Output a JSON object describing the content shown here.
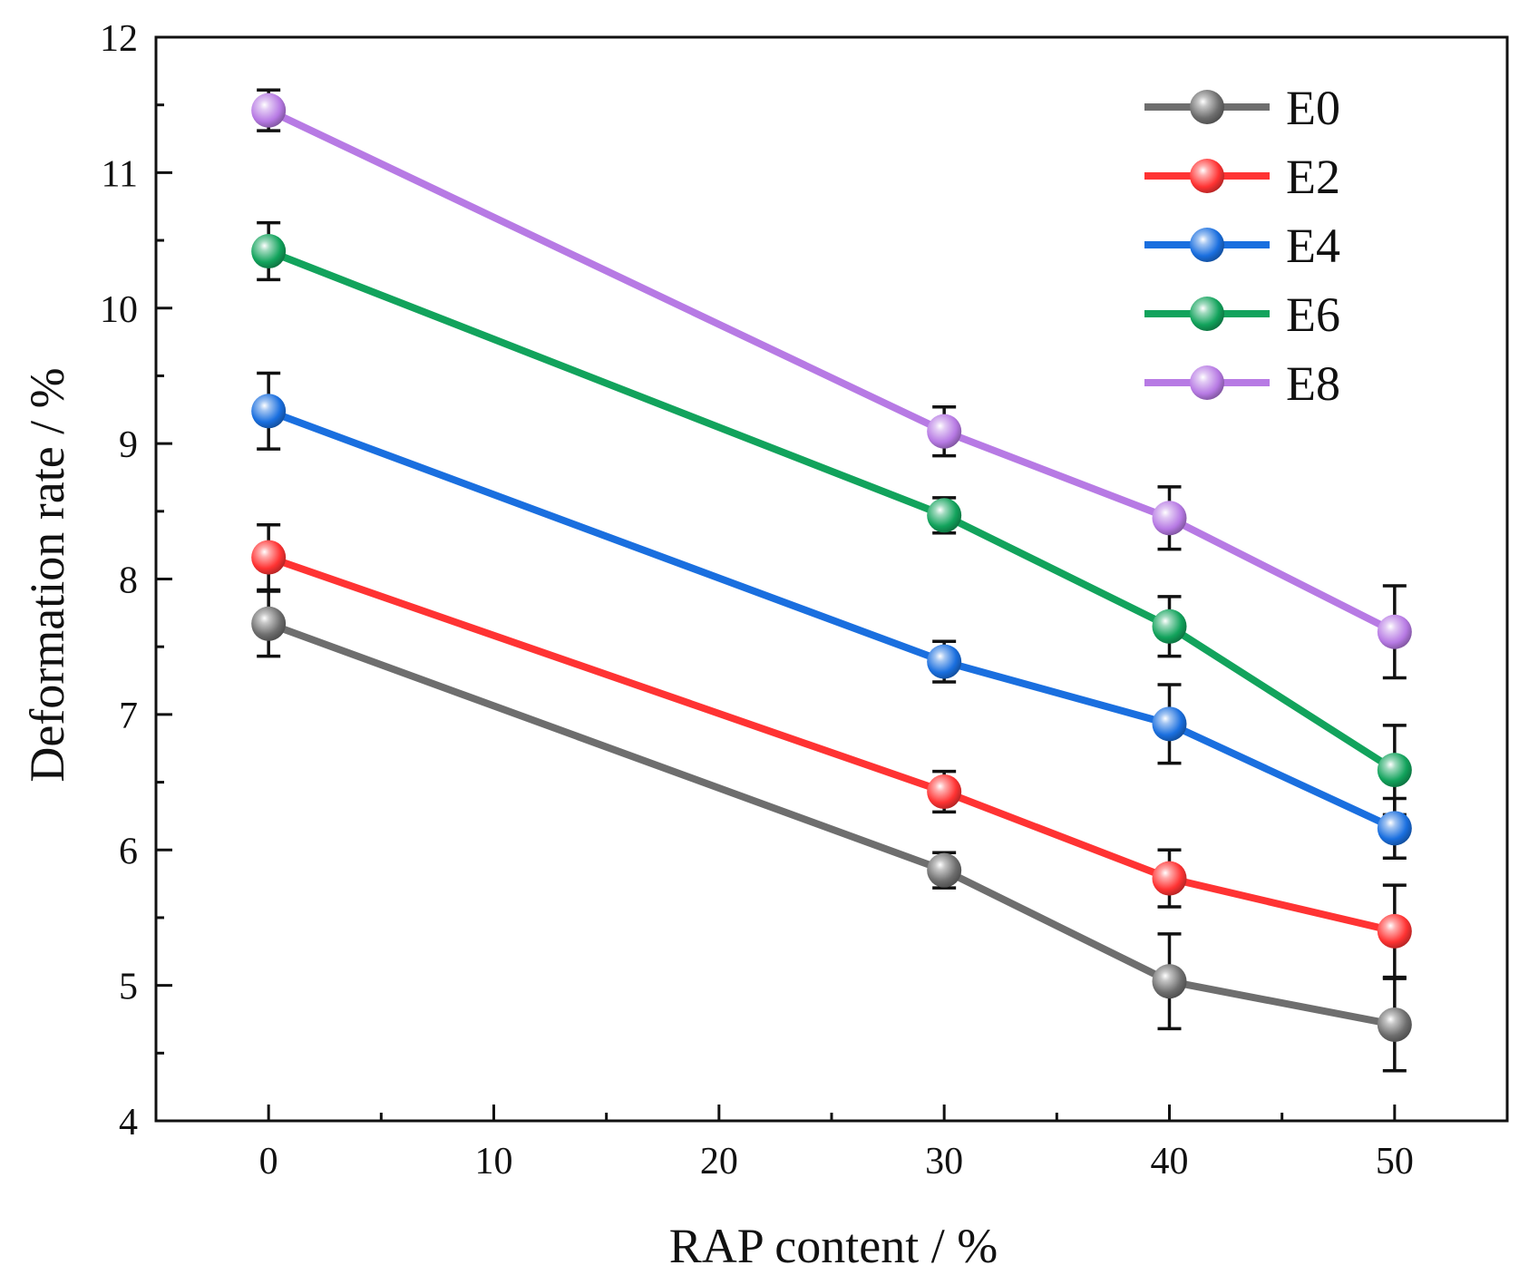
{
  "chart_data": {
    "type": "line",
    "title": "",
    "xlabel": "RAP content / %",
    "ylabel": "Deformation rate / %",
    "xlim": [
      -5,
      55
    ],
    "ylim": [
      4,
      12
    ],
    "x_ticks": [
      0,
      10,
      20,
      30,
      40,
      50
    ],
    "x_tick_labels": [
      "0",
      "10",
      "20",
      "30",
      "40",
      "50"
    ],
    "y_ticks": [
      4,
      5,
      6,
      7,
      8,
      9,
      10,
      11,
      12
    ],
    "y_tick_labels": [
      "4",
      "5",
      "6",
      "7",
      "8",
      "9",
      "10",
      "11",
      "12"
    ],
    "legend_position": "top-right",
    "x": [
      0,
      30,
      40,
      50
    ],
    "series": [
      {
        "name": "E0",
        "color": "#6e6e6e",
        "values": [
          7.67,
          5.85,
          5.03,
          4.71
        ],
        "errors": [
          0.24,
          0.13,
          0.35,
          0.34
        ]
      },
      {
        "name": "E2",
        "color": "#ff3333",
        "values": [
          8.16,
          6.43,
          5.79,
          5.4
        ],
        "errors": [
          0.24,
          0.15,
          0.21,
          0.34
        ]
      },
      {
        "name": "E4",
        "color": "#1a6fdf",
        "values": [
          9.24,
          7.39,
          6.93,
          6.16
        ],
        "errors": [
          0.28,
          0.15,
          0.29,
          0.22
        ]
      },
      {
        "name": "E6",
        "color": "#12a35c",
        "values": [
          10.42,
          8.47,
          7.65,
          6.59
        ],
        "errors": [
          0.21,
          0.13,
          0.22,
          0.33
        ]
      },
      {
        "name": "E8",
        "color": "#b77ae4",
        "values": [
          11.46,
          9.09,
          8.45,
          7.61
        ],
        "errors": [
          0.15,
          0.18,
          0.23,
          0.34
        ]
      }
    ]
  }
}
